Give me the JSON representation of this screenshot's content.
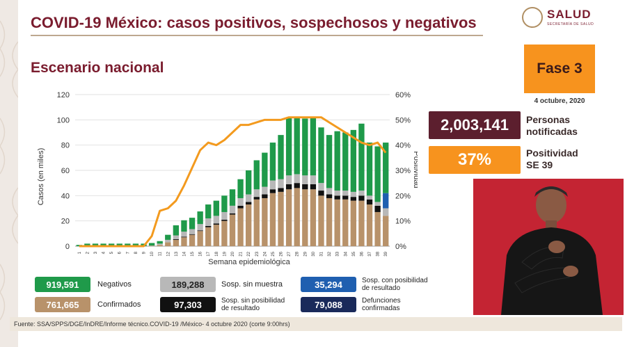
{
  "header": {
    "title": "COVID-19 México: casos positivos, sospechosos y negativos",
    "subtitle": "Escenario nacional",
    "logo_text": "SALUD",
    "logo_sub": "SECRETARÍA DE SALUD"
  },
  "badges": {
    "fase": "Fase 3",
    "fecha": "4 octubre, 2020"
  },
  "stats": {
    "notificadas_value": "2,003,141",
    "notificadas_label_1": "Personas",
    "notificadas_label_2": "notificadas",
    "positividad_value": "37%",
    "positividad_label_1": "Positividad",
    "positividad_label_2": "SE 39"
  },
  "legend": {
    "negativos_value": "919,591",
    "negativos_label": "Negativos",
    "sin_muestra_value": "189,288",
    "sin_muestra_label": "Sosp. sin muestra",
    "con_posibilidad_value": "35,294",
    "con_posibilidad_label_1": "Sosp. con posibilidad",
    "con_posibilidad_label_2": "de resultado",
    "confirmados_value": "761,665",
    "confirmados_label": "Confirmados",
    "sin_posibilidad_value": "97,303",
    "sin_posibilidad_label_1": "Sosp. sin posibilidad",
    "sin_posibilidad_label_2": "de resultado",
    "defunciones_value": "79,088",
    "defunciones_label_1": "Defunciones",
    "defunciones_label_2": "confirmadas"
  },
  "footer": {
    "source": "Fuente: SSA/SPPS/DGE/InDRE/Informe técnico.COVID-19 /México- 4 octubre 2020 (corte 9:00hrs)"
  },
  "colors": {
    "confirmados": "#b8926a",
    "sin_posibilidad": "#111111",
    "sin_muestra": "#b8b8b8",
    "negativos": "#1f9a4a",
    "con_posibilidad": "#1f5fb0",
    "positividad": "#f39a1e",
    "defunciones": "#1a2a5a"
  },
  "chart_data": {
    "type": "bar",
    "xlabel": "Semana epidemiológica",
    "ylabel": "Casos (en miles)",
    "y2label": "Positividad",
    "ylim": [
      0,
      120
    ],
    "y2lim": [
      0,
      60
    ],
    "yticks": [
      "0",
      "20",
      "40",
      "60",
      "80",
      "100",
      "120"
    ],
    "y2ticks": [
      "0%",
      "10%",
      "20%",
      "30%",
      "40%",
      "50%",
      "60%"
    ],
    "categories": [
      "1",
      "2",
      "3",
      "4",
      "5",
      "6",
      "7",
      "8",
      "9",
      "10",
      "11",
      "12",
      "13",
      "14",
      "15",
      "16",
      "17",
      "18",
      "19",
      "20",
      "21",
      "22",
      "23",
      "24",
      "25",
      "26",
      "27",
      "28",
      "29",
      "30",
      "31",
      "32",
      "33",
      "34",
      "35",
      "36",
      "37",
      "38",
      "39"
    ],
    "stacked": true,
    "series": [
      {
        "name": "Confirmados",
        "color": "#b8926a",
        "values": [
          0,
          0,
          0,
          0,
          0,
          0,
          0,
          0,
          0,
          0.3,
          1,
          3,
          5,
          7,
          9,
          12,
          15,
          17,
          20,
          25,
          30,
          33,
          37,
          38,
          42,
          43,
          45,
          46,
          45,
          45,
          40,
          38,
          37,
          37,
          36,
          36,
          33,
          27,
          24
        ]
      },
      {
        "name": "Sosp. sin posibilidad de resultado",
        "color": "#111111",
        "values": [
          0,
          0,
          0,
          0,
          0,
          0,
          0,
          0,
          0,
          0,
          0,
          0,
          0.5,
          0.5,
          0.5,
          0.5,
          1,
          1,
          1,
          1,
          2,
          2,
          2,
          3,
          3,
          3,
          4,
          4,
          4,
          4,
          4,
          3,
          3,
          3,
          3,
          4,
          4,
          5,
          0
        ]
      },
      {
        "name": "Sosp. sin muestra",
        "color": "#b8b8b8",
        "values": [
          0,
          0,
          0,
          0,
          0,
          0,
          0,
          0,
          0,
          0.2,
          1,
          2,
          3,
          4,
          4,
          5,
          6,
          6,
          6,
          6,
          6,
          6,
          6,
          6,
          7,
          7,
          7,
          7,
          7,
          7,
          6,
          5,
          4,
          4,
          4,
          4,
          3,
          3,
          6
        ]
      },
      {
        "name": "Sosp. con posibilidad de resultado",
        "color": "#1f5fb0",
        "values": [
          0,
          0,
          0,
          0,
          0,
          0,
          0,
          0,
          0,
          0,
          0,
          0,
          0,
          0,
          0,
          0,
          0,
          0,
          0,
          0,
          0,
          0,
          0,
          0,
          0,
          0,
          0,
          0,
          0,
          0,
          0,
          0,
          0,
          0,
          0,
          0,
          0,
          0,
          12
        ]
      },
      {
        "name": "Negativos",
        "color": "#1f9a4a",
        "values": [
          1,
          2,
          2,
          2,
          2,
          2,
          2,
          2,
          2,
          2,
          2,
          4,
          8,
          9,
          9,
          10,
          11,
          12,
          13,
          13,
          15,
          19,
          23,
          27,
          30,
          35,
          46,
          45,
          45,
          46,
          44,
          42,
          47,
          46,
          49,
          53,
          42,
          44,
          40
        ]
      }
    ],
    "line": {
      "name": "Positividad",
      "color": "#f39a1e",
      "values": [
        0,
        0,
        0,
        0,
        0,
        0,
        0,
        0,
        0,
        4,
        14,
        15,
        18,
        24,
        31,
        38,
        41,
        40,
        42,
        45,
        48,
        48,
        49,
        50,
        50,
        50,
        51,
        51,
        51,
        51,
        51,
        49,
        47,
        45,
        43,
        41,
        40,
        41,
        37
      ]
    }
  }
}
